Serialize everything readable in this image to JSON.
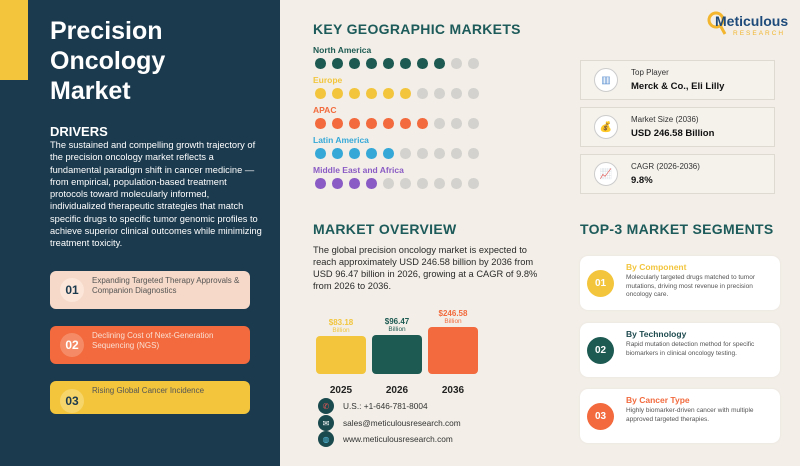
{
  "title": "Precision Oncology Market",
  "drivers": {
    "heading": "DRIVERS",
    "text": "The sustained and compelling growth trajectory of the precision oncology market reflects a fundamental paradigm shift in cancer medicine — from empirical, population-based treatment protocols toward molecularly informed, individualized therapeutic strategies that match specific drugs to specific tumor genomic profiles to achieve superior clinical outcomes while minimizing treatment toxicity.",
    "items": [
      {
        "num": "01",
        "label": "Expanding Targeted Therapy Approvals & Companion Diagnostics"
      },
      {
        "num": "02",
        "label": "Declining Cost of Next-Generation Sequencing (NGS)"
      },
      {
        "num": "03",
        "label": "Rising Global Cancer Incidence"
      }
    ]
  },
  "geo": {
    "heading": "KEY GEOGRAPHIC MARKETS",
    "regions": [
      {
        "name": "North America",
        "filled": 8,
        "total": 10,
        "color": "#1d5a52"
      },
      {
        "name": "Europe",
        "filled": 6,
        "total": 10,
        "color": "#f2c53d"
      },
      {
        "name": "APAC",
        "filled": 7,
        "total": 10,
        "color": "#f26a3d"
      },
      {
        "name": "Latin America",
        "filled": 5,
        "total": 10,
        "color": "#35a8d8"
      },
      {
        "name": "Middle East and Africa",
        "filled": 4,
        "total": 10,
        "color": "#8a5bc4"
      }
    ]
  },
  "logo": {
    "name": "Meticulous",
    "sub": "RESEARCH"
  },
  "key_stats": [
    {
      "label": "Top Player",
      "value": "Merck & Co., Eli Lilly",
      "icon": "bar-chart-icon"
    },
    {
      "label": "Market Size (2036)",
      "value": "USD 246.58 Billion",
      "icon": "money-bag-icon"
    },
    {
      "label": "CAGR (2026-2036)",
      "value": "9.8%",
      "icon": "trend-chart-icon"
    }
  ],
  "overview": {
    "heading": "MARKET OVERVIEW",
    "text": "The global precision oncology market is expected to reach approximately USD 246.58 billion by 2036 from USD 96.47 billion in 2026, growing at a CAGR of 9.8% from 2026 to 2036."
  },
  "chart_data": {
    "type": "bar",
    "categories": [
      "2025",
      "2026",
      "2036"
    ],
    "values": [
      83.18,
      96.47,
      246.58
    ],
    "labels": [
      "$83.18",
      "$96.47",
      "$246.58"
    ],
    "unit": "Billion",
    "colors": [
      "#f2c53d",
      "#1d5a52",
      "#f26a3d"
    ]
  },
  "contact": {
    "phone": "U.S.: +1-646-781-8004",
    "email": "sales@meticulousresearch.com",
    "web": "www.meticulousresearch.com"
  },
  "segments": {
    "heading": "TOP-3 MARKET SEGMENTS",
    "items": [
      {
        "num": "01",
        "title": "By Component",
        "text": "Molecularly targeted drugs matched to tumor mutations, driving most revenue in precision oncology care.",
        "color": "#f2c53d"
      },
      {
        "num": "02",
        "title": "By Technology",
        "text": "Rapid mutation detection method for specific biomarkers in clinical oncology testing.",
        "color": "#1d5a52"
      },
      {
        "num": "03",
        "title": "By Cancer Type",
        "text": "Highly biomarker-driven cancer with multiple approved targeted therapies.",
        "color": "#f26a3d"
      }
    ]
  }
}
